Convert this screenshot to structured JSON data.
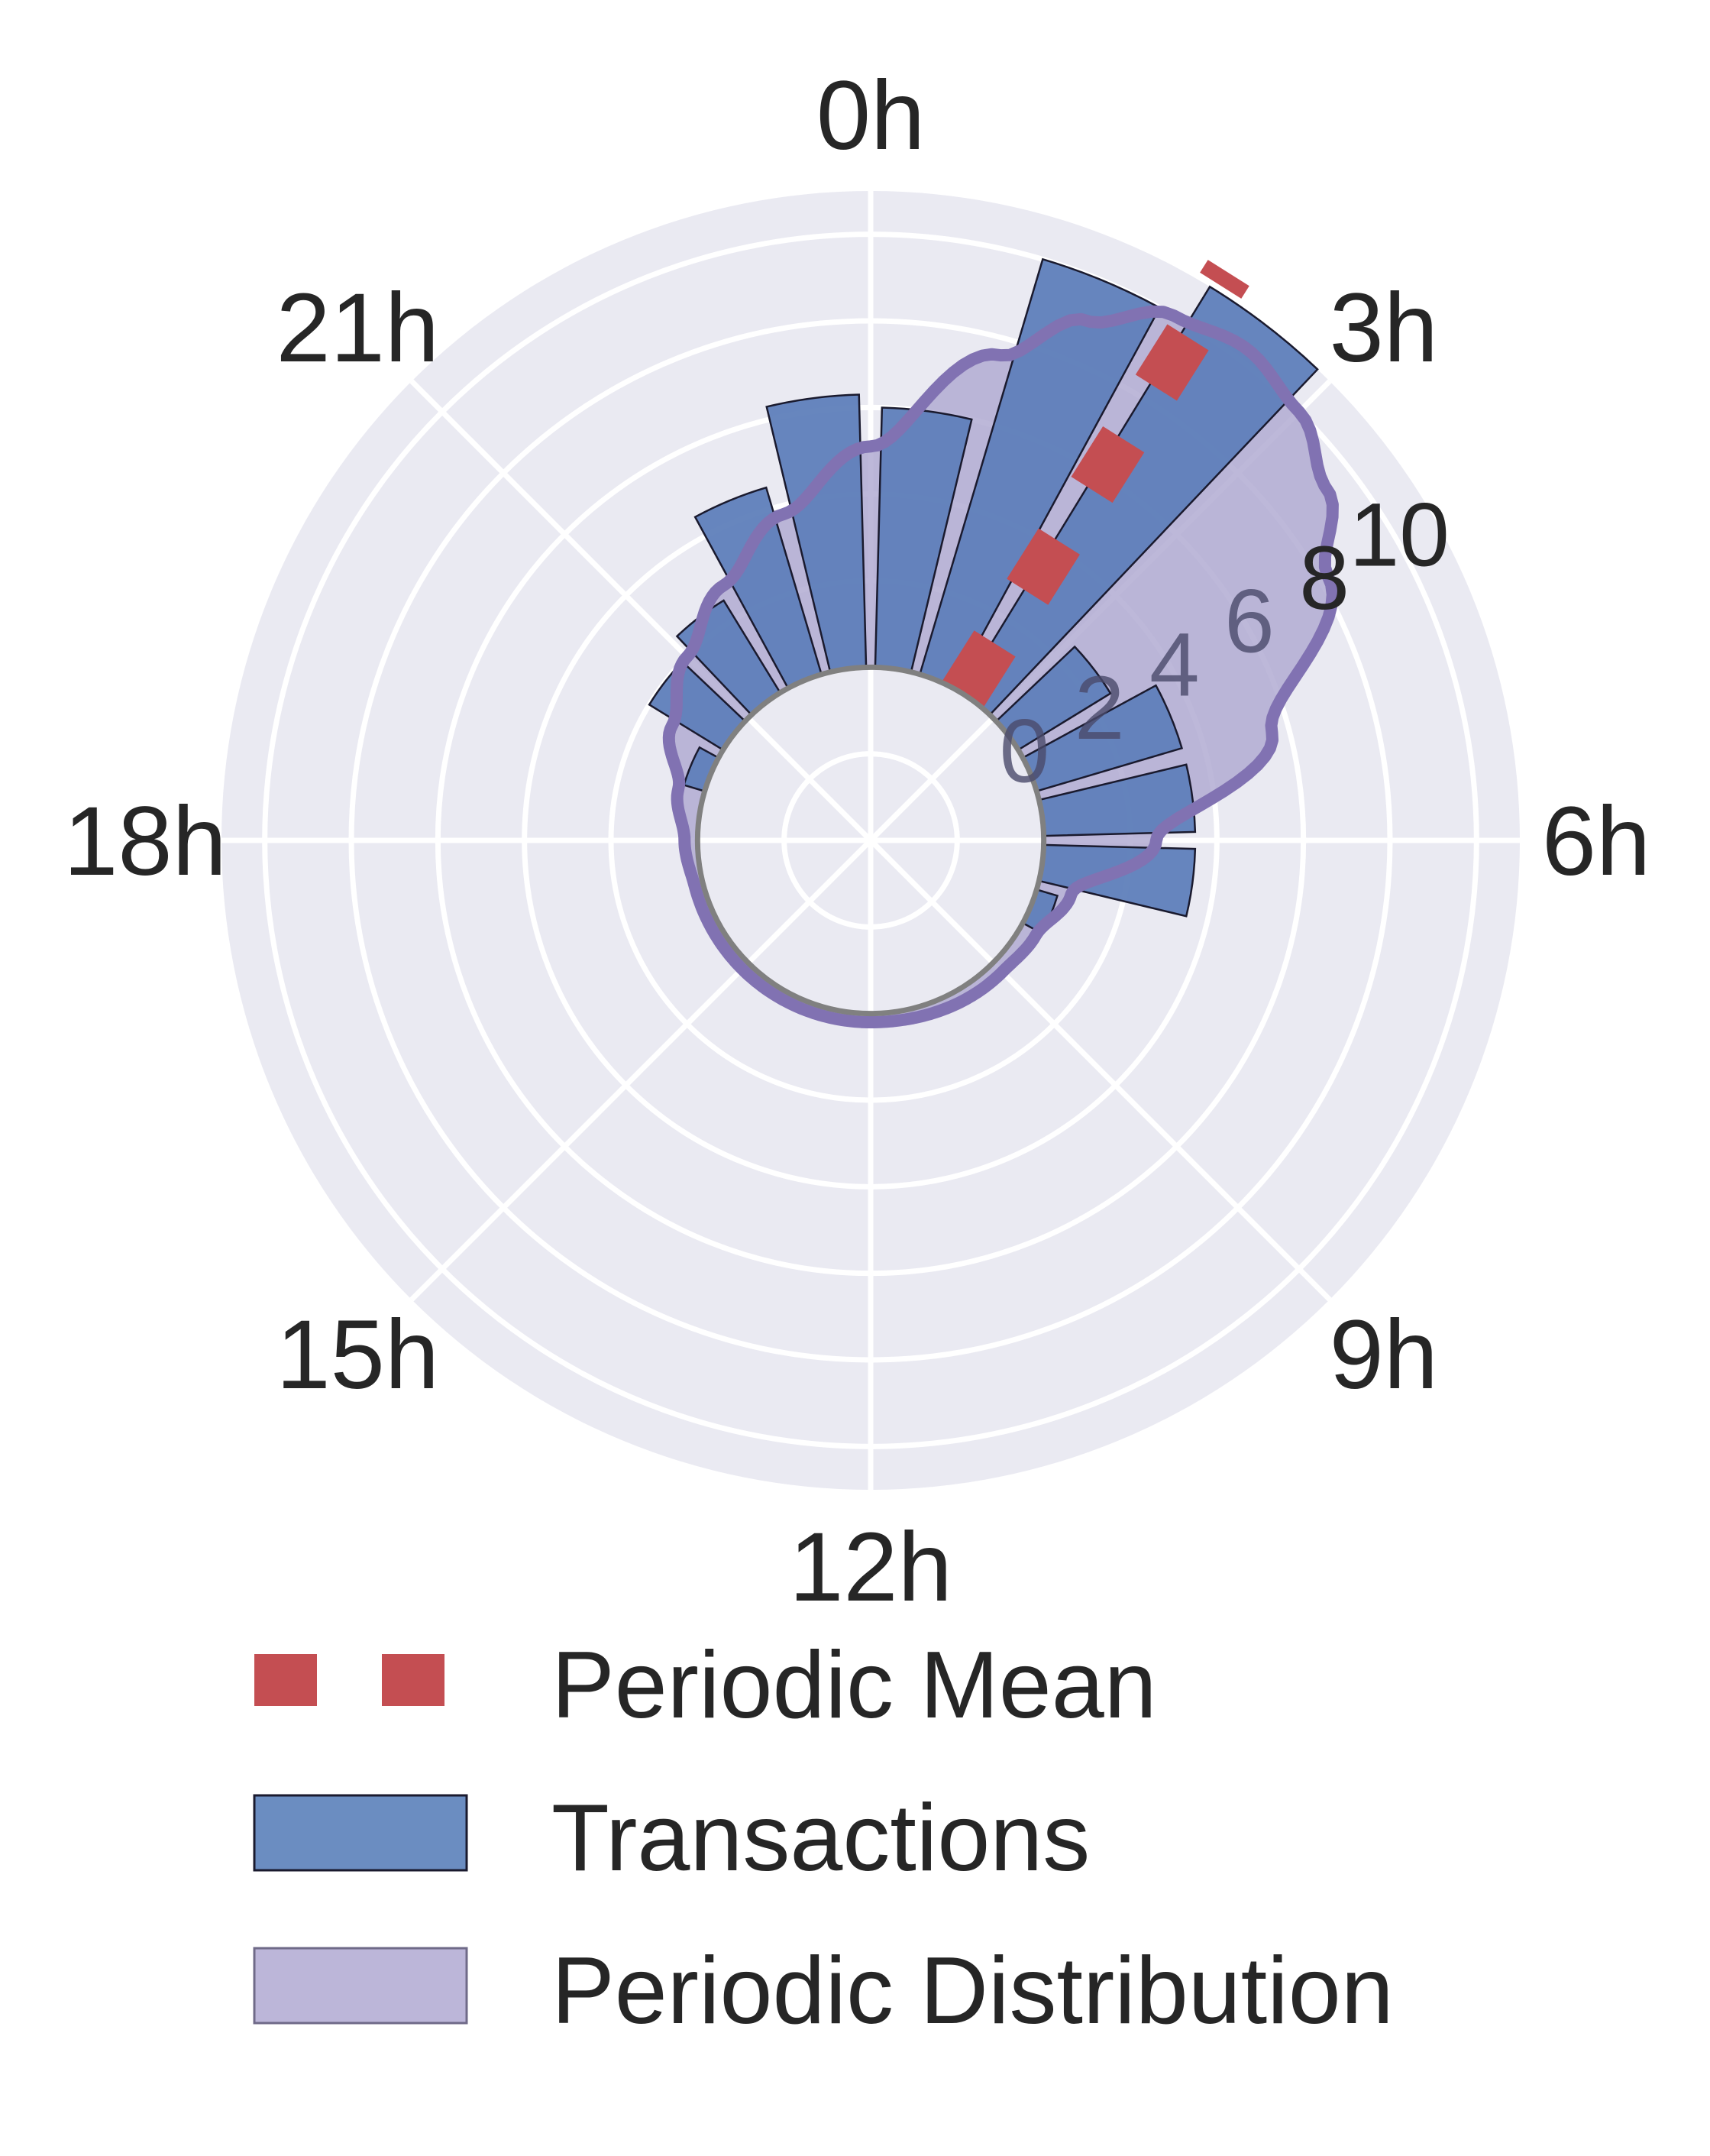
{
  "chart_data": {
    "type": "polar-bar",
    "theta_direction": "clockwise",
    "theta_zero": "top",
    "hour_labels": [
      "0h",
      "3h",
      "6h",
      "9h",
      "12h",
      "15h",
      "18h",
      "21h"
    ],
    "radial_ticks": [
      "0",
      "2",
      "4",
      "6",
      "8",
      "10"
    ],
    "radial_range": [
      -4,
      11
    ],
    "series": [
      {
        "name": "Transactions",
        "kind": "bar",
        "color": "#5f80bb",
        "edge_color": "#1a1a2e",
        "bars": [
          {
            "hour": 7.5,
            "value": 0.5
          },
          {
            "hour": 6.5,
            "value": 3.5
          },
          {
            "hour": 5.5,
            "value": 3.5
          },
          {
            "hour": 4.5,
            "value": 3.5
          },
          {
            "hour": 3.5,
            "value": 2.5
          },
          {
            "hour": 2.5,
            "value": 11.0
          },
          {
            "hour": 1.5,
            "value": 10.0
          },
          {
            "hour": 0.5,
            "value": 6.0
          },
          {
            "hour": 23.5,
            "value": 6.3
          },
          {
            "hour": 22.5,
            "value": 4.5
          },
          {
            "hour": 21.5,
            "value": 2.5
          },
          {
            "hour": 20.5,
            "value": 2.0
          },
          {
            "hour": 19.5,
            "value": 0.5
          }
        ]
      },
      {
        "name": "Periodic Mean",
        "kind": "line",
        "color": "#c44e52",
        "line_style": "dashed",
        "hour": 2.15,
        "range": [
          0,
          11.5
        ]
      },
      {
        "name": "Periodic Distribution",
        "kind": "area",
        "color": "#8172b2",
        "fill_color": "#b2abd2",
        "points": [
          {
            "hour": 0,
            "value": 5.1
          },
          {
            "hour": 1,
            "value": 7.6
          },
          {
            "hour": 1.5,
            "value": 9.0
          },
          {
            "hour": 2,
            "value": 10.0
          },
          {
            "hour": 2.5,
            "value": 10.3
          },
          {
            "hour": 3,
            "value": 10.0
          },
          {
            "hour": 3.5,
            "value": 9.3
          },
          {
            "hour": 4,
            "value": 8.2
          },
          {
            "hour": 5,
            "value": 5.6
          },
          {
            "hour": 6,
            "value": 2.6
          },
          {
            "hour": 7,
            "value": 0.8
          },
          {
            "hour": 8,
            "value": 0.4
          },
          {
            "hour": 9,
            "value": 0.3
          },
          {
            "hour": 12,
            "value": 0.2
          },
          {
            "hour": 15,
            "value": 0.2
          },
          {
            "hour": 17,
            "value": 0.2
          },
          {
            "hour": 18,
            "value": 0.3
          },
          {
            "hour": 19,
            "value": 0.6
          },
          {
            "hour": 20,
            "value": 1.3
          },
          {
            "hour": 21,
            "value": 2.0
          },
          {
            "hour": 22,
            "value": 2.8
          },
          {
            "hour": 23,
            "value": 3.8
          }
        ]
      }
    ],
    "legend": {
      "placement": "bottom",
      "entries": [
        "Periodic Mean",
        "Transactions",
        "Periodic Distribution"
      ]
    },
    "grid": true,
    "background_color": "#eaeaf2",
    "grid_color": "#ffffff",
    "inner_circle_color": "#808080"
  }
}
